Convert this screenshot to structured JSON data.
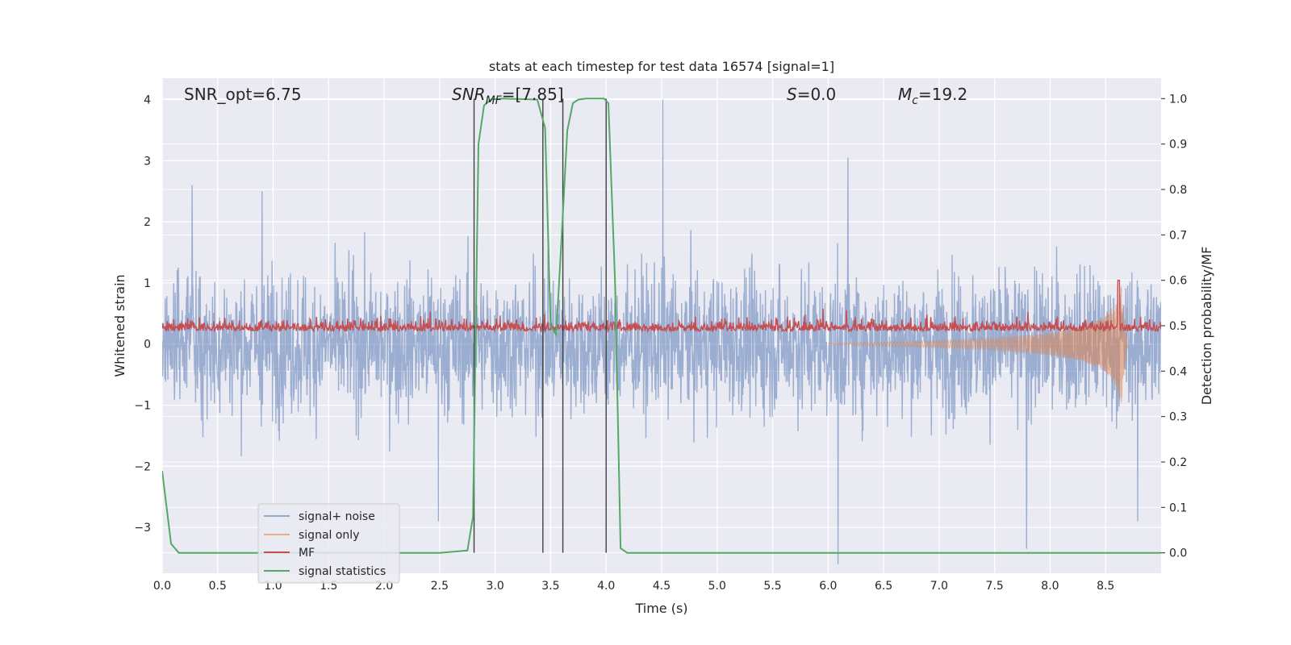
{
  "chart_data": {
    "type": "line",
    "title": "stats at each timestep for test data 16574 [signal=1]",
    "xlabel": "Time (s)",
    "ylabel": "Whitened strain",
    "y2label": "Detection probability/MF",
    "xlim": [
      0.0,
      9.0
    ],
    "ylim": [
      -3.75,
      4.35
    ],
    "y2lim": [
      -0.045,
      1.045
    ],
    "x_ticks": [
      "0.0",
      "0.5",
      "1.0",
      "1.5",
      "2.0",
      "2.5",
      "3.0",
      "3.5",
      "4.0",
      "4.5",
      "5.0",
      "5.5",
      "6.0",
      "6.5",
      "7.0",
      "7.5",
      "8.0",
      "8.5"
    ],
    "y_ticks": [
      "4",
      "3",
      "2",
      "1",
      "0",
      "−1",
      "−2",
      "−3"
    ],
    "y2_ticks": [
      "1.0",
      "0.9",
      "0.8",
      "0.7",
      "0.6",
      "0.5",
      "0.4",
      "0.3",
      "0.2",
      "0.1",
      "0.0"
    ],
    "grid": true,
    "legend_position": "lower-left",
    "background_color": "#eaeaf2",
    "colors": {
      "signal_noise": "#4c72b0",
      "signal_only": "#dd8452",
      "mf": "#c44e52",
      "signal_statistics": "#55a868",
      "vlines": "#404040"
    },
    "annotations": [
      {
        "pre": "SNR_opt=6.75",
        "it": "",
        "sub": "",
        "post": ""
      },
      {
        "pre": "",
        "it": "SNR",
        "sub": "MF",
        "post": "=[7.85]"
      },
      {
        "pre": "",
        "it": "S",
        "sub": "",
        "post": "=0.0"
      },
      {
        "pre": "",
        "it": "M",
        "sub": "c",
        "post": "=19.2"
      }
    ],
    "vertical_lines_x": [
      2.81,
      3.43,
      3.61,
      4.0
    ],
    "series": [
      {
        "name": "signal+ noise",
        "axis": "left",
        "description": "noisy whitened strain, roughly gaussian with std ~0.9",
        "peak_values": [
          {
            "x": 0.27,
            "y": 2.6
          },
          {
            "x": 0.9,
            "y": 2.5
          },
          {
            "x": 2.49,
            "y": -2.9
          },
          {
            "x": 4.51,
            "y": 4.0
          },
          {
            "x": 6.09,
            "y": -3.6
          },
          {
            "x": 6.18,
            "y": 3.05
          },
          {
            "x": 7.79,
            "y": -3.35
          },
          {
            "x": 8.79,
            "y": -2.9
          }
        ]
      },
      {
        "name": "signal only",
        "axis": "left",
        "description": "chirp growing toward merger",
        "x": [
          0.0,
          6.0,
          7.0,
          7.5,
          8.0,
          8.3,
          8.5,
          8.6,
          8.64,
          8.66,
          8.7
        ],
        "envelope": [
          0.0,
          0.01,
          0.06,
          0.1,
          0.18,
          0.28,
          0.45,
          0.7,
          1.05,
          0.6,
          0.0
        ]
      },
      {
        "name": "MF",
        "axis": "right",
        "description": "matched filter output, baseline ~0.5 with small positive excursions",
        "baseline": 0.5,
        "peak_values": [
          {
            "x": 8.62,
            "y": 0.6
          }
        ]
      },
      {
        "name": "signal statistics",
        "axis": "right",
        "x": [
          0.0,
          0.08,
          0.15,
          0.5,
          2.5,
          2.75,
          2.8,
          2.85,
          2.9,
          2.96,
          3.05,
          3.38,
          3.45,
          3.5,
          3.55,
          3.6,
          3.65,
          3.7,
          3.75,
          3.82,
          3.98,
          4.02,
          4.08,
          4.13,
          4.19,
          4.5,
          9.0
        ],
        "values": [
          0.18,
          0.02,
          0.0,
          0.0,
          0.0,
          0.005,
          0.08,
          0.9,
          0.985,
          0.998,
          1.0,
          0.998,
          0.935,
          0.5,
          0.48,
          0.7,
          0.93,
          0.99,
          0.998,
          1.0,
          1.0,
          0.99,
          0.6,
          0.01,
          0.0,
          0.0,
          0.0
        ]
      }
    ]
  }
}
